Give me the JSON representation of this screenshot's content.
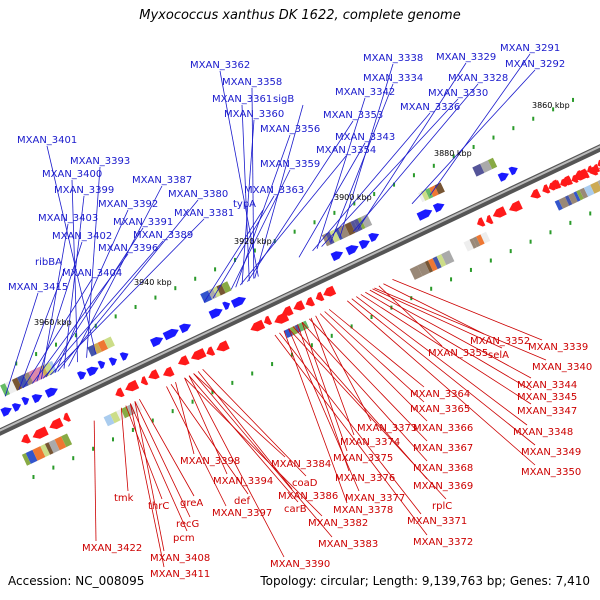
{
  "title": "Myxococcus xanthus DK 1622, complete genome",
  "accession": "Accession: NC_008095",
  "topology": "Topology: circular; Length: 9,139,763 bp; Genes: 7,410",
  "colors": {
    "forward": "#1a1aff",
    "reverse": "#ff1a1a",
    "label_forward": "#1a1acc",
    "label_reverse": "#cc0000",
    "backbone": "#888888",
    "tick": "#2a9a2a"
  },
  "scale_labels": [
    "3860 kbp",
    "3880 kbp",
    "3900 kbp",
    "3920 kbp",
    "3940 kbp",
    "3960 kbp"
  ],
  "forward_genes": [
    "MXAN_3291",
    "MXAN_3292",
    "MXAN_3329",
    "MXAN_3328",
    "MXAN_3338",
    "MXAN_3334",
    "MXAN_3342",
    "MXAN_3330",
    "MXAN_3336",
    "MXAN_3343",
    "MXAN_3362",
    "MXAN_3358",
    "MXAN_3361",
    "sigB",
    "MXAN_3360",
    "MXAN_3353",
    "MXAN_3356",
    "MXAN_3354",
    "MXAN_3359",
    "MXAN_3363",
    "typA",
    "MXAN_3401",
    "MXAN_3393",
    "MXAN_3400",
    "MXAN_3387",
    "MXAN_3399",
    "MXAN_3380",
    "MXAN_3392",
    "MXAN_3381",
    "MXAN_3403",
    "MXAN_3391",
    "MXAN_3402",
    "MXAN_3389",
    "MXAN_3396",
    "ribBA",
    "MXAN_3404",
    "MXAN_3415"
  ],
  "reverse_genes": [
    "MXAN_3339",
    "MXAN_3352",
    "MXAN_3355",
    "selA",
    "MXAN_3340",
    "MXAN_3344",
    "MXAN_3345",
    "MXAN_3347",
    "MXAN_3348",
    "MXAN_3349",
    "MXAN_3350",
    "MXAN_3364",
    "MXAN_3365",
    "MXAN_3366",
    "MXAN_3373",
    "MXAN_3374",
    "MXAN_3367",
    "MXAN_3375",
    "MXAN_3368",
    "MXAN_3376",
    "MXAN_3369",
    "MXAN_3377",
    "MXAN_3378",
    "rplC",
    "MXAN_3371",
    "MXAN_3372",
    "MXAN_3398",
    "MXAN_3384",
    "MXAN_3394",
    "coaD",
    "MXAN_3386",
    "carB",
    "MXAN_3382",
    "MXAN_3383",
    "def",
    "MXAN_3397",
    "MXAN_3390",
    "tmk",
    "thrC",
    "greA",
    "recG",
    "pcm",
    "MXAN_3408",
    "MXAN_3411",
    "MXAN_3422"
  ]
}
